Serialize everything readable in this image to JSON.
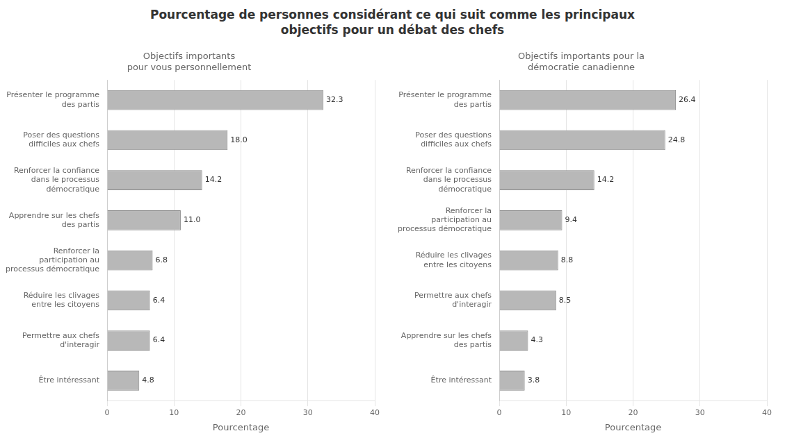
{
  "title": "Pourcentage de personnes considérant ce qui suit comme les principaux\nobjectifs pour un débat des chefs",
  "chart_data": [
    {
      "type": "bar",
      "orientation": "horizontal",
      "subtitle": "Objectifs importants\npour vous personnellement",
      "xlabel": "Pourcentage",
      "categories": [
        "Présenter le programme\ndes partis",
        "Poser des questions\ndifficiles aux chefs",
        "Renforcer la confiance\ndans le processus\ndémocratique",
        "Apprendre sur les chefs\ndes partis",
        "Renforcer la\nparticipation au\nprocessus démocratique",
        "Réduire les clivages\nentre les citoyens",
        "Permettre aux chefs\nd'interagir",
        "Être intéressant"
      ],
      "values": [
        32.3,
        18.0,
        14.2,
        11.0,
        6.8,
        6.4,
        6.4,
        4.8
      ],
      "value_labels": [
        "32.3",
        "18.0",
        "14.2",
        "11.0",
        "6.8",
        "6.4",
        "6.4",
        "4.8"
      ],
      "color": "#b8b8b8",
      "xlim": [
        0,
        40
      ],
      "xticks": [
        0,
        10,
        20,
        30,
        40
      ],
      "grid": true,
      "data_labels": true
    },
    {
      "type": "bar",
      "orientation": "horizontal",
      "subtitle": "Objectifs importants pour la\ndémocratie canadienne",
      "xlabel": "Pourcentage",
      "categories": [
        "Présenter le programme\ndes partis",
        "Poser des questions\ndifficiles aux chefs",
        "Renforcer la confiance\ndans le processus\ndémocratique",
        "Renforcer la\nparticipation au\nprocessus démocratique",
        "Réduire les clivages\nentre les citoyens",
        "Permettre aux chefs\nd'interagir",
        "Apprendre sur les chefs\ndes partis",
        "Être intéressant"
      ],
      "values": [
        26.4,
        24.8,
        14.2,
        9.4,
        8.8,
        8.5,
        4.3,
        3.8
      ],
      "value_labels": [
        "26.4",
        "24.8",
        "14.2",
        "9.4",
        "8.8",
        "8.5",
        "4.3",
        "3.8"
      ],
      "color": "#b8b8b8",
      "xlim": [
        0,
        40
      ],
      "xticks": [
        0,
        10,
        20,
        30,
        40
      ],
      "grid": true,
      "data_labels": true
    }
  ]
}
